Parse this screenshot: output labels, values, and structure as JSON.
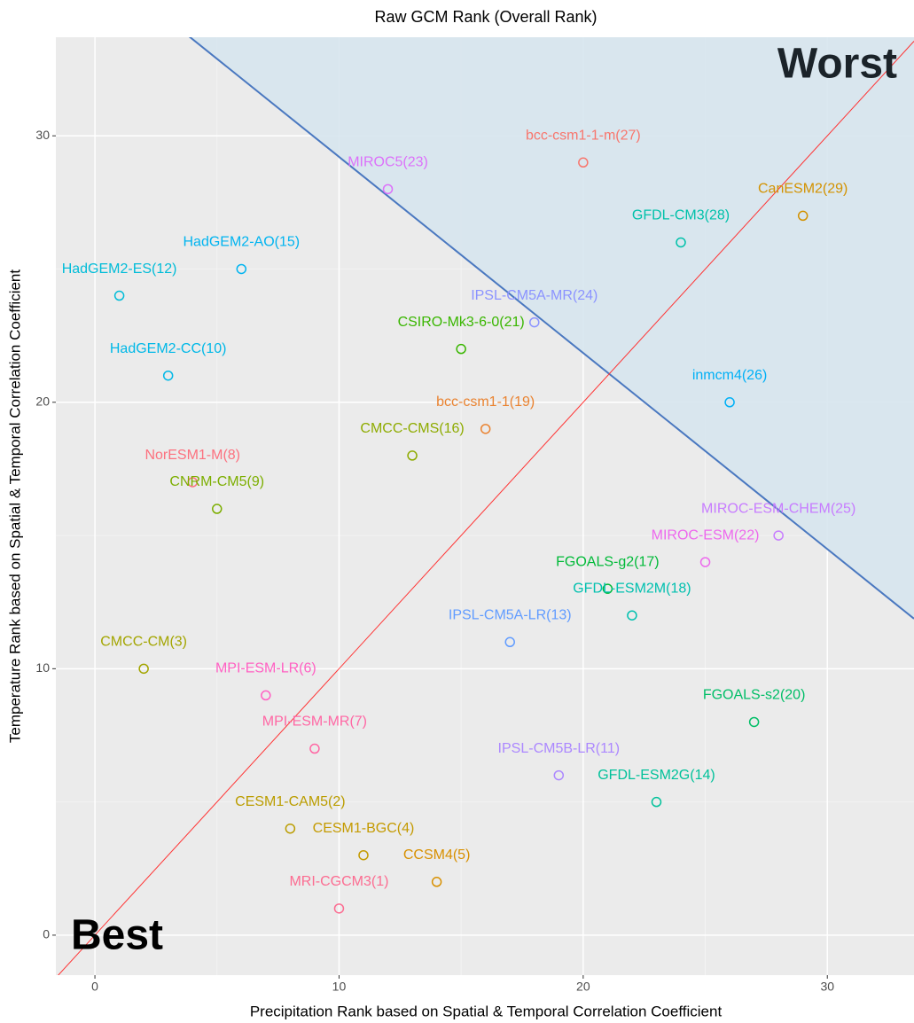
{
  "chart_data": {
    "type": "scatter",
    "title": "Raw GCM Rank (Overall Rank)",
    "x_label": "Precipitation Rank based on Spatial & Temporal Correlation Coefficient",
    "y_label": "Temperature Rank based on Spatial & Temporal Correlation Coefficient",
    "xlim": [
      -1.6,
      33.55
    ],
    "ylim": [
      -1.5,
      33.7
    ],
    "xticks": [
      0,
      10,
      20,
      30
    ],
    "yticks": [
      0,
      10,
      20,
      30
    ],
    "xminor_ticks": [
      5,
      15,
      25
    ],
    "yminor_ticks": [
      5,
      15,
      25
    ],
    "grid": true,
    "annotations": {
      "worst": "Worst",
      "best": "Best"
    },
    "reference_line": {
      "slope": 1,
      "intercept": 0,
      "color": "#ff3333"
    },
    "boundary_line": {
      "slope": -0.736,
      "intercept": 36.57,
      "color": "#4a78c0",
      "fill": "#d7e5ee"
    },
    "points": [
      {
        "label": "MRI-CGCM3(1)",
        "x": 10,
        "y": 1,
        "color": "#FC6C91"
      },
      {
        "label": "CESM1-CAM5(2)",
        "x": 8,
        "y": 4,
        "color": "#BB9D00"
      },
      {
        "label": "CMCC-CM(3)",
        "x": 2,
        "y": 10,
        "color": "#A3A500"
      },
      {
        "label": "CESM1-BGC(4)",
        "x": 11,
        "y": 3,
        "color": "#C49A00"
      },
      {
        "label": "CCSM4(5)",
        "x": 14,
        "y": 2,
        "color": "#D89000"
      },
      {
        "label": "MPI-ESM-LR(6)",
        "x": 7,
        "y": 9,
        "color": "#FF61C3"
      },
      {
        "label": "MPI-ESM-MR(7)",
        "x": 9,
        "y": 7,
        "color": "#FF67A4"
      },
      {
        "label": "NorESM1-M(8)",
        "x": 4,
        "y": 17,
        "color": "#FC717F"
      },
      {
        "label": "CNRM-CM5(9)",
        "x": 5,
        "y": 16,
        "color": "#7CAE00"
      },
      {
        "label": "HadGEM2-CC(10)",
        "x": 3,
        "y": 21,
        "color": "#00B8E7"
      },
      {
        "label": "IPSL-CM5B-LR(11)",
        "x": 19,
        "y": 6,
        "color": "#AC88FF"
      },
      {
        "label": "HadGEM2-ES(12)",
        "x": 1,
        "y": 24,
        "color": "#00BCD8"
      },
      {
        "label": "IPSL-CM5A-LR(13)",
        "x": 17,
        "y": 11,
        "color": "#619CFF"
      },
      {
        "label": "GFDL-ESM2G(14)",
        "x": 23,
        "y": 5,
        "color": "#00C19A"
      },
      {
        "label": "HadGEM2-AO(15)",
        "x": 6,
        "y": 25,
        "color": "#00B4F0"
      },
      {
        "label": "CMCC-CMS(16)",
        "x": 13,
        "y": 18,
        "color": "#8EAB00"
      },
      {
        "label": "FGOALS-g2(17)",
        "x": 21,
        "y": 13,
        "color": "#00BA38"
      },
      {
        "label": "GFDL-ESM2M(18)",
        "x": 22,
        "y": 12,
        "color": "#00C0AF"
      },
      {
        "label": "bcc-csm1-1(19)",
        "x": 16,
        "y": 19,
        "color": "#EA8331"
      },
      {
        "label": "FGOALS-s2(20)",
        "x": 27,
        "y": 8,
        "color": "#00BE67"
      },
      {
        "label": "CSIRO-Mk3-6-0(21)",
        "x": 15,
        "y": 22,
        "color": "#39B600"
      },
      {
        "label": "MIROC-ESM(22)",
        "x": 25,
        "y": 14,
        "color": "#ED68ED"
      },
      {
        "label": "MIROC5(23)",
        "x": 12,
        "y": 28,
        "color": "#DC71FA"
      },
      {
        "label": "IPSL-CM5A-MR(24)",
        "x": 18,
        "y": 23,
        "color": "#8B93FF"
      },
      {
        "label": "MIROC-ESM-CHEM(25)",
        "x": 28,
        "y": 15,
        "color": "#C77CFF"
      },
      {
        "label": "inmcm4(26)",
        "x": 26,
        "y": 20,
        "color": "#00B0F6"
      },
      {
        "label": "bcc-csm1-1-m(27)",
        "x": 20,
        "y": 29,
        "color": "#F8766D"
      },
      {
        "label": "GFDL-CM3(28)",
        "x": 24,
        "y": 26,
        "color": "#00C1AA"
      },
      {
        "label": "CanESM2(29)",
        "x": 29,
        "y": 27,
        "color": "#D39200"
      }
    ]
  }
}
